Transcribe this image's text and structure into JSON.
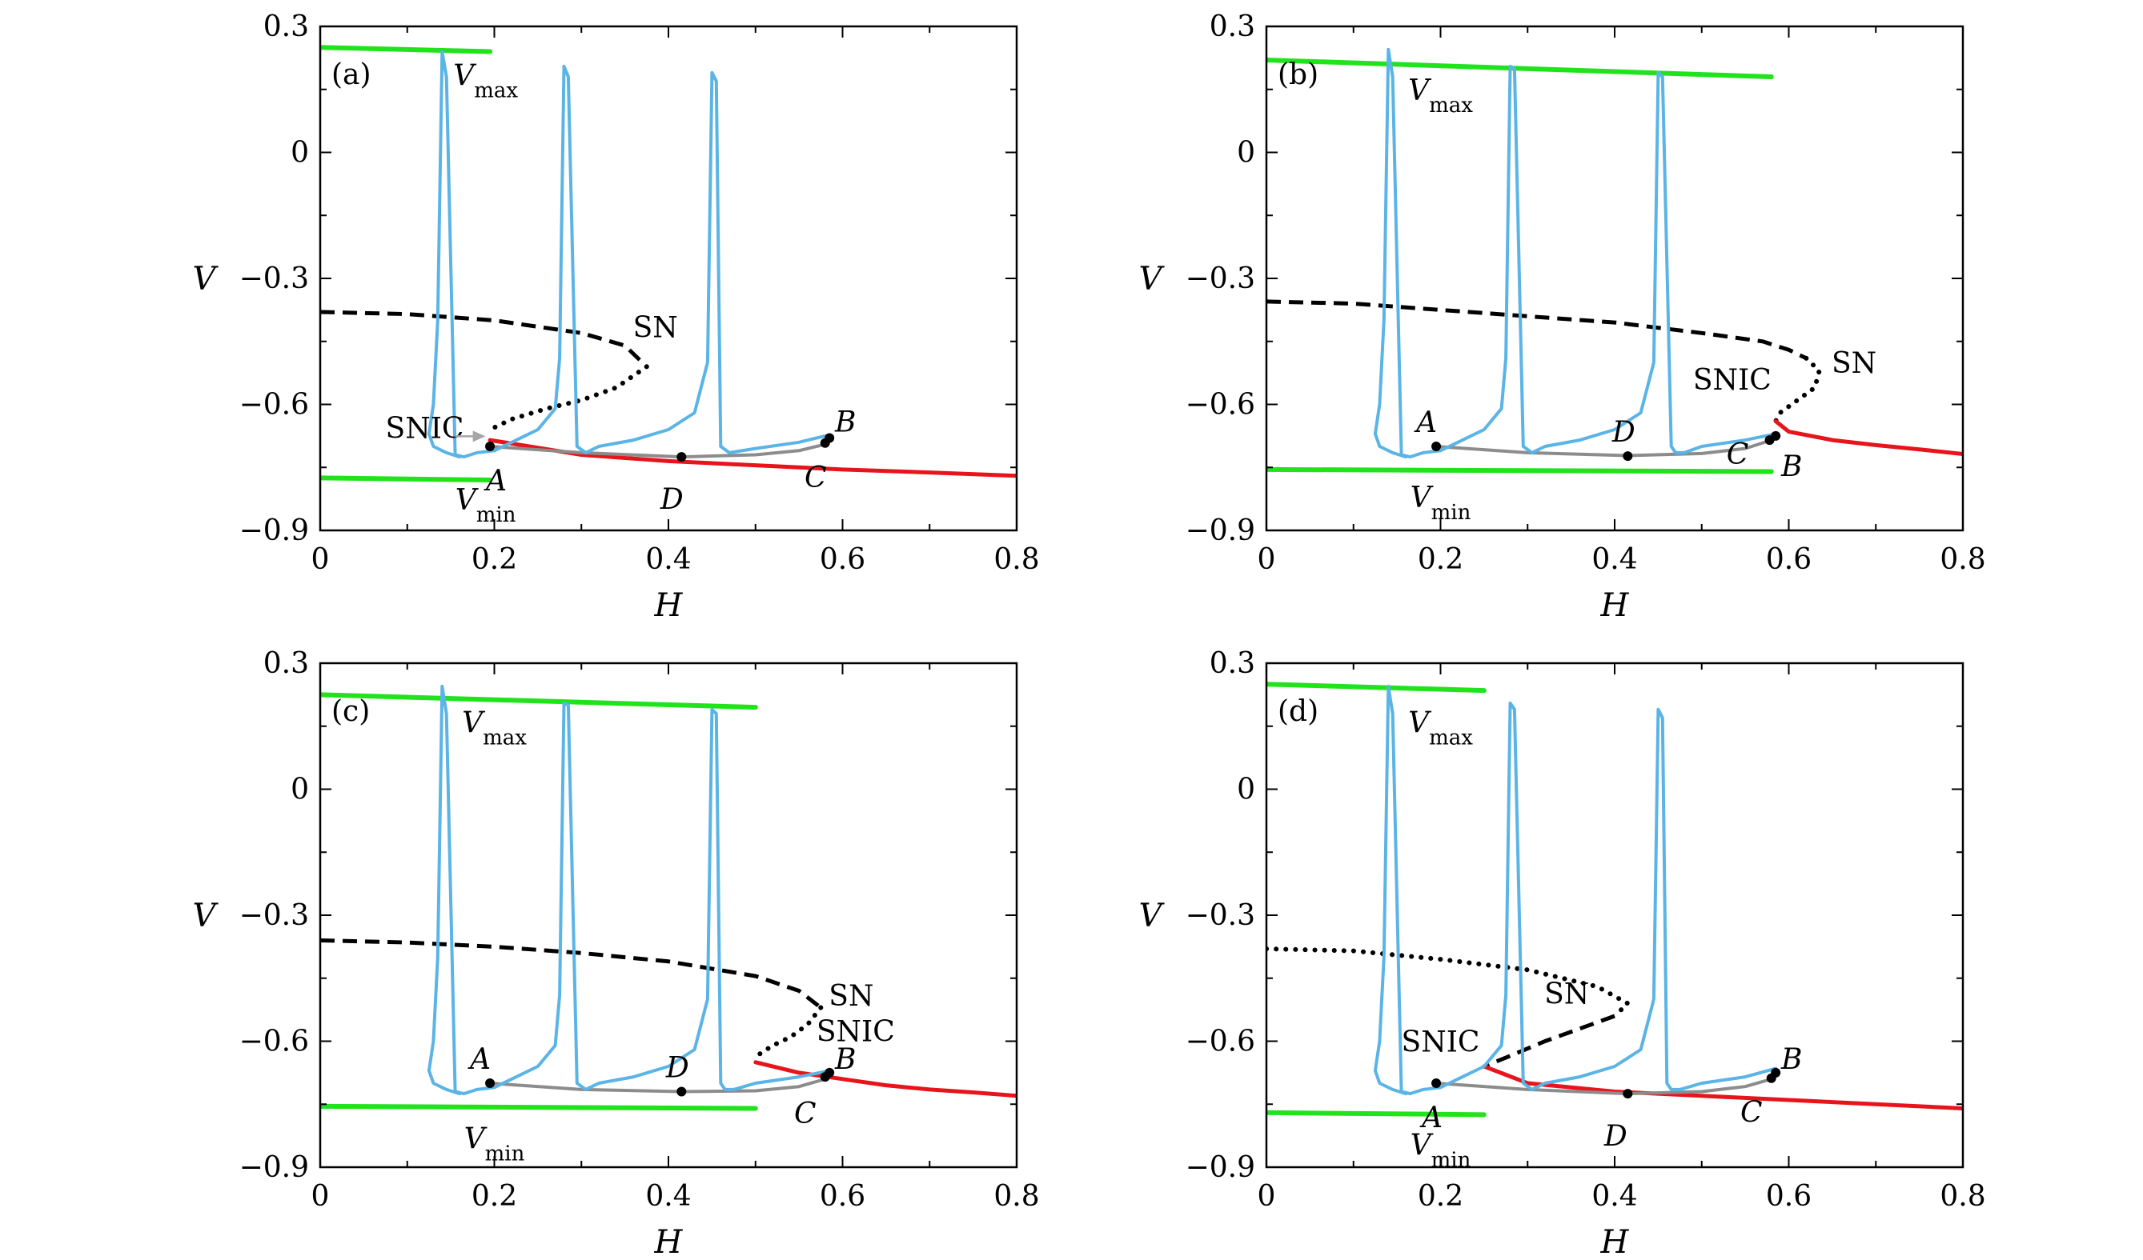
{
  "figure": {
    "xlabel": "H",
    "ylabel": "V",
    "xticks": [
      "0",
      "0.2",
      "0.4",
      "0.6",
      "0.8"
    ],
    "yticks": [
      "0.3",
      "0",
      "−0.3",
      "−0.6",
      "−0.9"
    ],
    "colors": {
      "stable_branch": "#e8141b",
      "unstable_branch": "#000000",
      "trajectory": "#5bb4e6",
      "slow_orbit": "#8c8c8c",
      "vmax_vmin": "#21e31c",
      "annotation_arrow": "#a6a6a6"
    }
  },
  "chart_data": [
    {
      "type": "line",
      "panel": "(a)",
      "xlim": [
        0,
        0.8
      ],
      "ylim": [
        -0.9,
        0.3
      ],
      "grid": false,
      "series": [
        {
          "role": "vmax",
          "label": "Vmax",
          "x": [
            0,
            0.195
          ],
          "y": [
            0.25,
            0.24
          ]
        },
        {
          "role": "vmin",
          "label": "Vmin",
          "x": [
            0,
            0.195
          ],
          "y": [
            -0.775,
            -0.78
          ]
        },
        {
          "role": "unstable-dashed",
          "x": [
            0,
            0.1,
            0.2,
            0.3,
            0.35,
            0.375
          ],
          "y": [
            -0.38,
            -0.385,
            -0.4,
            -0.43,
            -0.46,
            -0.51
          ]
        },
        {
          "role": "unstable-dotted",
          "x": [
            0.375,
            0.34,
            0.3,
            0.26,
            0.22,
            0.195
          ],
          "y": [
            -0.51,
            -0.56,
            -0.59,
            -0.61,
            -0.635,
            -0.66
          ]
        },
        {
          "role": "stable",
          "x": [
            0.195,
            0.3,
            0.4,
            0.5,
            0.6,
            0.7,
            0.8
          ],
          "y": [
            -0.685,
            -0.72,
            -0.735,
            -0.745,
            -0.755,
            -0.762,
            -0.77
          ]
        },
        {
          "role": "slow-orbit",
          "x": [
            0.195,
            0.3,
            0.415,
            0.5,
            0.55,
            0.58
          ],
          "y": [
            -0.7,
            -0.715,
            -0.725,
            -0.72,
            -0.71,
            -0.695
          ]
        },
        {
          "role": "trajectory",
          "x": [
            0.58,
            0.55,
            0.5,
            0.47,
            0.46,
            0.455,
            0.45,
            0.445,
            0.43,
            0.4,
            0.36,
            0.32,
            0.305,
            0.295,
            0.285,
            0.28,
            0.275,
            0.27,
            0.25,
            0.22,
            0.2,
            0.18,
            0.165,
            0.155,
            0.145,
            0.14,
            0.135,
            0.13,
            0.125,
            0.13,
            0.145,
            0.16
          ],
          "y": [
            -0.675,
            -0.69,
            -0.705,
            -0.715,
            -0.7,
            0.17,
            0.19,
            -0.5,
            -0.62,
            -0.66,
            -0.685,
            -0.7,
            -0.715,
            -0.7,
            0.18,
            0.205,
            -0.49,
            -0.61,
            -0.66,
            -0.69,
            -0.71,
            -0.715,
            -0.725,
            -0.72,
            0.18,
            0.24,
            -0.4,
            -0.6,
            -0.67,
            -0.7,
            -0.715,
            -0.725
          ]
        }
      ],
      "points": [
        {
          "name": "A",
          "x": 0.195,
          "y": -0.7
        },
        {
          "name": "B",
          "x": 0.585,
          "y": -0.68
        },
        {
          "name": "C",
          "x": 0.58,
          "y": -0.692
        },
        {
          "name": "D",
          "x": 0.415,
          "y": -0.725
        }
      ],
      "annotations": [
        "SN",
        "SNIC",
        "A",
        "B",
        "C",
        "D",
        "Vmax",
        "Vmin"
      ]
    },
    {
      "type": "line",
      "panel": "(b)",
      "xlim": [
        0,
        0.8
      ],
      "ylim": [
        -0.9,
        0.3
      ],
      "grid": false,
      "series": [
        {
          "role": "vmax",
          "label": "Vmax",
          "x": [
            0,
            0.58
          ],
          "y": [
            0.22,
            0.18
          ]
        },
        {
          "role": "vmin",
          "label": "Vmin",
          "x": [
            0,
            0.58
          ],
          "y": [
            -0.755,
            -0.76
          ]
        },
        {
          "role": "unstable-dashed",
          "x": [
            0,
            0.1,
            0.2,
            0.3,
            0.4,
            0.5,
            0.57,
            0.6,
            0.62
          ],
          "y": [
            -0.355,
            -0.36,
            -0.375,
            -0.39,
            -0.405,
            -0.43,
            -0.45,
            -0.47,
            -0.49
          ]
        },
        {
          "role": "unstable-dotted",
          "x": [
            0.62,
            0.635,
            0.63,
            0.61,
            0.59,
            0.585
          ],
          "y": [
            -0.49,
            -0.52,
            -0.56,
            -0.59,
            -0.62,
            -0.64
          ]
        },
        {
          "role": "stable",
          "x": [
            0.585,
            0.6,
            0.65,
            0.7,
            0.75,
            0.8
          ],
          "y": [
            -0.64,
            -0.665,
            -0.685,
            -0.697,
            -0.707,
            -0.718
          ]
        },
        {
          "role": "slow-orbit",
          "x": [
            0.195,
            0.3,
            0.415,
            0.5,
            0.55,
            0.58
          ],
          "y": [
            -0.7,
            -0.715,
            -0.722,
            -0.717,
            -0.705,
            -0.685
          ]
        },
        {
          "role": "trajectory",
          "x": [
            0.585,
            0.55,
            0.5,
            0.48,
            0.47,
            0.465,
            0.455,
            0.45,
            0.445,
            0.43,
            0.4,
            0.36,
            0.32,
            0.305,
            0.295,
            0.285,
            0.28,
            0.275,
            0.27,
            0.25,
            0.22,
            0.2,
            0.18,
            0.165,
            0.155,
            0.145,
            0.14,
            0.135,
            0.13,
            0.125,
            0.13,
            0.145,
            0.16
          ],
          "y": [
            -0.67,
            -0.685,
            -0.7,
            -0.715,
            -0.715,
            -0.7,
            0.18,
            0.19,
            -0.5,
            -0.62,
            -0.66,
            -0.685,
            -0.7,
            -0.715,
            -0.7,
            0.2,
            0.205,
            -0.49,
            -0.61,
            -0.66,
            -0.69,
            -0.71,
            -0.715,
            -0.725,
            -0.72,
            0.18,
            0.245,
            -0.4,
            -0.6,
            -0.67,
            -0.7,
            -0.715,
            -0.725
          ]
        }
      ],
      "points": [
        {
          "name": "A",
          "x": 0.195,
          "y": -0.7
        },
        {
          "name": "B",
          "x": 0.585,
          "y": -0.675
        },
        {
          "name": "C",
          "x": 0.578,
          "y": -0.685
        },
        {
          "name": "D",
          "x": 0.415,
          "y": -0.723
        }
      ],
      "annotations": [
        "SN",
        "SNIC",
        "A",
        "B",
        "C",
        "D",
        "Vmax",
        "Vmin"
      ]
    },
    {
      "type": "line",
      "panel": "(c)",
      "xlim": [
        0,
        0.8
      ],
      "ylim": [
        -0.9,
        0.3
      ],
      "grid": false,
      "series": [
        {
          "role": "vmax",
          "label": "Vmax",
          "x": [
            0,
            0.5
          ],
          "y": [
            0.225,
            0.195
          ]
        },
        {
          "role": "vmin",
          "label": "Vmin",
          "x": [
            0,
            0.5
          ],
          "y": [
            -0.755,
            -0.76
          ]
        },
        {
          "role": "unstable-dashed",
          "x": [
            0,
            0.1,
            0.2,
            0.3,
            0.4,
            0.5,
            0.55,
            0.575
          ],
          "y": [
            -0.36,
            -0.365,
            -0.375,
            -0.39,
            -0.41,
            -0.445,
            -0.48,
            -0.52
          ]
        },
        {
          "role": "unstable-dotted",
          "x": [
            0.575,
            0.56,
            0.54,
            0.52,
            0.505,
            0.5
          ],
          "y": [
            -0.52,
            -0.56,
            -0.59,
            -0.61,
            -0.63,
            -0.65
          ]
        },
        {
          "role": "stable",
          "x": [
            0.5,
            0.55,
            0.6,
            0.65,
            0.7,
            0.75,
            0.8
          ],
          "y": [
            -0.65,
            -0.675,
            -0.69,
            -0.705,
            -0.715,
            -0.722,
            -0.73
          ]
        },
        {
          "role": "slow-orbit",
          "x": [
            0.195,
            0.3,
            0.415,
            0.5,
            0.55,
            0.58
          ],
          "y": [
            -0.7,
            -0.715,
            -0.72,
            -0.718,
            -0.708,
            -0.69
          ]
        },
        {
          "role": "trajectory",
          "x": [
            0.585,
            0.55,
            0.5,
            0.475,
            0.465,
            0.46,
            0.455,
            0.45,
            0.445,
            0.43,
            0.4,
            0.36,
            0.32,
            0.305,
            0.295,
            0.285,
            0.28,
            0.275,
            0.27,
            0.25,
            0.22,
            0.2,
            0.18,
            0.165,
            0.155,
            0.145,
            0.14,
            0.135,
            0.13,
            0.125,
            0.13,
            0.145,
            0.16
          ],
          "y": [
            -0.67,
            -0.685,
            -0.7,
            -0.715,
            -0.715,
            -0.7,
            0.18,
            0.19,
            -0.5,
            -0.62,
            -0.66,
            -0.685,
            -0.7,
            -0.715,
            -0.7,
            0.2,
            0.205,
            -0.49,
            -0.61,
            -0.66,
            -0.69,
            -0.71,
            -0.715,
            -0.725,
            -0.72,
            0.18,
            0.245,
            -0.4,
            -0.6,
            -0.67,
            -0.7,
            -0.715,
            -0.725
          ]
        }
      ],
      "points": [
        {
          "name": "A",
          "x": 0.195,
          "y": -0.7
        },
        {
          "name": "B",
          "x": 0.585,
          "y": -0.675
        },
        {
          "name": "C",
          "x": 0.58,
          "y": -0.685
        },
        {
          "name": "D",
          "x": 0.415,
          "y": -0.72
        }
      ],
      "annotations": [
        "SN",
        "SNIC",
        "A",
        "B",
        "C",
        "D",
        "Vmax",
        "Vmin"
      ]
    },
    {
      "type": "line",
      "panel": "(d)",
      "xlim": [
        0,
        0.8
      ],
      "ylim": [
        -0.9,
        0.3
      ],
      "grid": false,
      "series": [
        {
          "role": "vmax",
          "label": "Vmax",
          "x": [
            0,
            0.25
          ],
          "y": [
            0.25,
            0.235
          ]
        },
        {
          "role": "vmin",
          "label": "Vmin",
          "x": [
            0,
            0.25
          ],
          "y": [
            -0.77,
            -0.775
          ]
        },
        {
          "role": "unstable-dotted",
          "x": [
            0,
            0.1,
            0.2,
            0.3,
            0.38,
            0.415,
            0.4
          ],
          "y": [
            -0.38,
            -0.385,
            -0.405,
            -0.43,
            -0.47,
            -0.51,
            -0.54
          ]
        },
        {
          "role": "unstable-dashed",
          "x": [
            0.4,
            0.36,
            0.32,
            0.28,
            0.25
          ],
          "y": [
            -0.54,
            -0.57,
            -0.6,
            -0.635,
            -0.66
          ]
        },
        {
          "role": "stable",
          "x": [
            0.25,
            0.3,
            0.4,
            0.5,
            0.6,
            0.7,
            0.8
          ],
          "y": [
            -0.66,
            -0.7,
            -0.72,
            -0.73,
            -0.74,
            -0.75,
            -0.76
          ]
        },
        {
          "role": "slow-orbit",
          "x": [
            0.195,
            0.3,
            0.415,
            0.5,
            0.55,
            0.58
          ],
          "y": [
            -0.7,
            -0.715,
            -0.725,
            -0.72,
            -0.708,
            -0.69
          ]
        },
        {
          "role": "trajectory",
          "x": [
            0.585,
            0.55,
            0.5,
            0.475,
            0.465,
            0.46,
            0.455,
            0.45,
            0.445,
            0.43,
            0.4,
            0.36,
            0.32,
            0.305,
            0.295,
            0.285,
            0.28,
            0.275,
            0.27,
            0.25,
            0.22,
            0.2,
            0.18,
            0.165,
            0.155,
            0.145,
            0.14,
            0.135,
            0.13,
            0.125,
            0.13,
            0.145,
            0.16
          ],
          "y": [
            -0.665,
            -0.685,
            -0.7,
            -0.715,
            -0.715,
            -0.7,
            0.17,
            0.19,
            -0.5,
            -0.62,
            -0.66,
            -0.685,
            -0.7,
            -0.715,
            -0.7,
            0.19,
            0.205,
            -0.49,
            -0.61,
            -0.66,
            -0.69,
            -0.71,
            -0.715,
            -0.725,
            -0.72,
            0.18,
            0.245,
            -0.4,
            -0.6,
            -0.67,
            -0.7,
            -0.715,
            -0.725
          ]
        }
      ],
      "points": [
        {
          "name": "A",
          "x": 0.195,
          "y": -0.7
        },
        {
          "name": "B",
          "x": 0.585,
          "y": -0.675
        },
        {
          "name": "C",
          "x": 0.58,
          "y": -0.688
        },
        {
          "name": "D",
          "x": 0.415,
          "y": -0.725
        }
      ],
      "annotations": [
        "SN",
        "SNIC",
        "A",
        "B",
        "C",
        "D",
        "Vmax",
        "Vmin"
      ]
    }
  ]
}
